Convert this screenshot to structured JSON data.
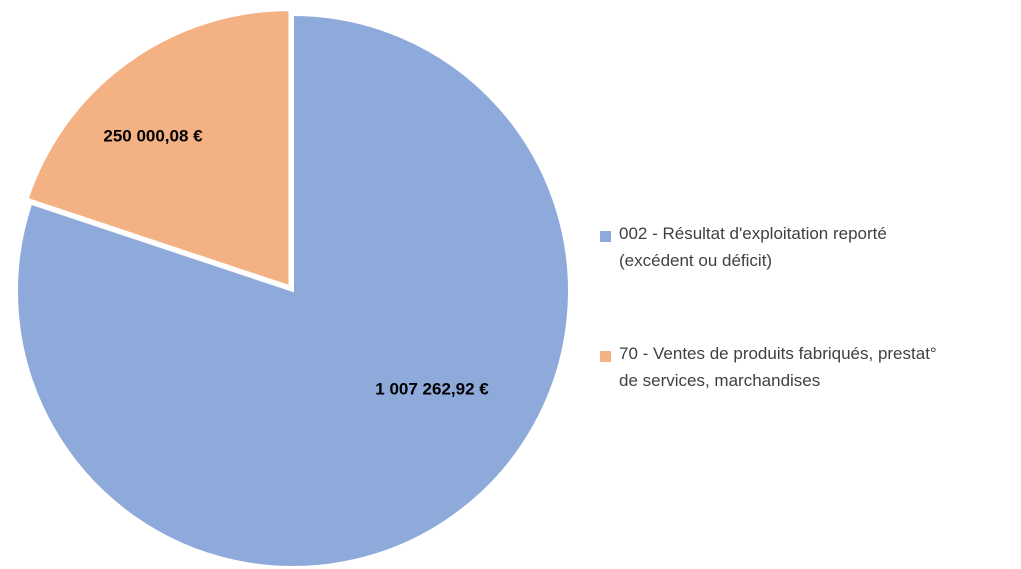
{
  "chart_data": {
    "type": "pie",
    "categories": [
      "002 - Résultat d'exploitation reporté (excédent ou déficit)",
      "70 - Ventes de produits fabriqués, prestat° de services, marchandises"
    ],
    "values": [
      1007262.92,
      250000.08
    ],
    "value_labels": [
      "1 007 262,92 €",
      "250 000,08 €"
    ],
    "colors": [
      "#8eaadb",
      "#f4b183"
    ],
    "legend": "right"
  }
}
